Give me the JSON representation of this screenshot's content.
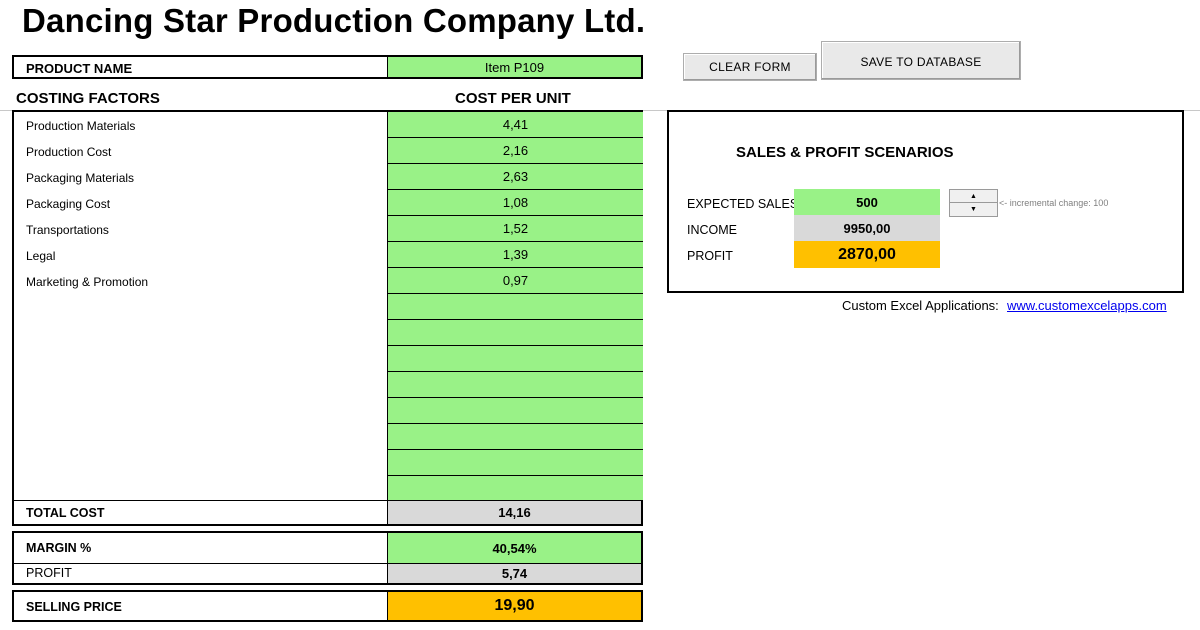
{
  "title": "Dancing Star Production Company Ltd.",
  "product": {
    "label": "PRODUCT NAME",
    "value": "Item P109"
  },
  "headers": {
    "factors": "COSTING FACTORS",
    "cost": "COST PER UNIT"
  },
  "factors": [
    {
      "label": "Production Materials",
      "value": "4,41"
    },
    {
      "label": "Production Cost",
      "value": "2,16"
    },
    {
      "label": "Packaging Materials",
      "value": "2,63"
    },
    {
      "label": "Packaging Cost",
      "value": "1,08"
    },
    {
      "label": "Transportations",
      "value": "1,52"
    },
    {
      "label": "Legal",
      "value": "1,39"
    },
    {
      "label": "Marketing & Promotion",
      "value": "0,97"
    },
    {
      "label": "",
      "value": ""
    },
    {
      "label": "",
      "value": ""
    },
    {
      "label": "",
      "value": ""
    },
    {
      "label": "",
      "value": ""
    },
    {
      "label": "",
      "value": ""
    },
    {
      "label": "",
      "value": ""
    },
    {
      "label": "",
      "value": ""
    },
    {
      "label": "",
      "value": ""
    }
  ],
  "total": {
    "label": "TOTAL COST",
    "value": "14,16"
  },
  "margin": {
    "label": "MARGIN %",
    "value": "40,54%"
  },
  "profit": {
    "label": "PROFIT",
    "value": "5,74"
  },
  "selling": {
    "label": "SELLING PRICE",
    "value": "19,90"
  },
  "buttons": {
    "clear": "CLEAR FORM",
    "save": "SAVE TO DATABASE"
  },
  "scenarios": {
    "title": "SALES & PROFIT SCENARIOS",
    "expected_label": "EXPECTED SALES",
    "expected_value": "500",
    "income_label": "INCOME",
    "income_value": "9950,00",
    "profit_label": "PROFIT",
    "profit_value": "2870,00",
    "increment_note": "<- incremental change: 100"
  },
  "footer": {
    "text": "Custom Excel Applications:",
    "link": "www.customexcelapps.com"
  },
  "colors": {
    "green": "#99f287",
    "gray": "#d9d9d9",
    "orange": "#ffc000"
  },
  "icons": {
    "spin_up": "spinner-up-arrow-icon",
    "spin_down": "spinner-down-arrow-icon"
  }
}
